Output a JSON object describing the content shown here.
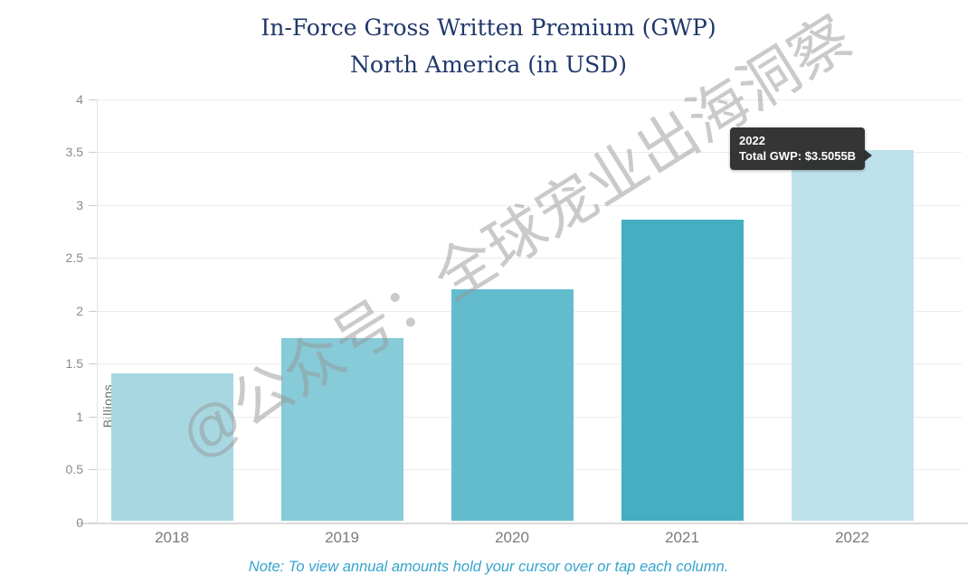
{
  "chart_data": {
    "type": "bar",
    "title_line1": "In-Force Gross Written Premium (GWP)",
    "title_line2": "North America (in USD)",
    "ylabel": "Billions",
    "categories": [
      "2018",
      "2019",
      "2020",
      "2021",
      "2022"
    ],
    "values": [
      1.39,
      1.73,
      2.19,
      2.85,
      3.5055
    ],
    "ylim": [
      0,
      4
    ],
    "ytick_step": 0.5,
    "ytick_labels": [
      "0",
      "0.5",
      "1",
      "1.5",
      "2",
      "2.5",
      "3",
      "3.5",
      "4"
    ],
    "grid": true,
    "legend": "none",
    "bar_colors": [
      "#a7d8e2",
      "#87cbd8",
      "#63bcce",
      "#45aec3",
      "#bee2ec"
    ]
  },
  "tooltip": {
    "title": "2022",
    "body": "Total GWP: $3.5055B"
  },
  "note": "Note: To view annual amounts hold your cursor over or tap each column.",
  "watermark": "@公众号：全球宠业出海洞察",
  "colors": {
    "title_text": "#20386b",
    "note_text": "#35a4cd",
    "axis_text": "#8a8a8a",
    "gridline": "#ececec",
    "axis_line": "#dcdcdc",
    "tooltip_bg": "#2a2a2a",
    "tooltip_text": "#ffffff",
    "watermark_text": "#999999"
  }
}
